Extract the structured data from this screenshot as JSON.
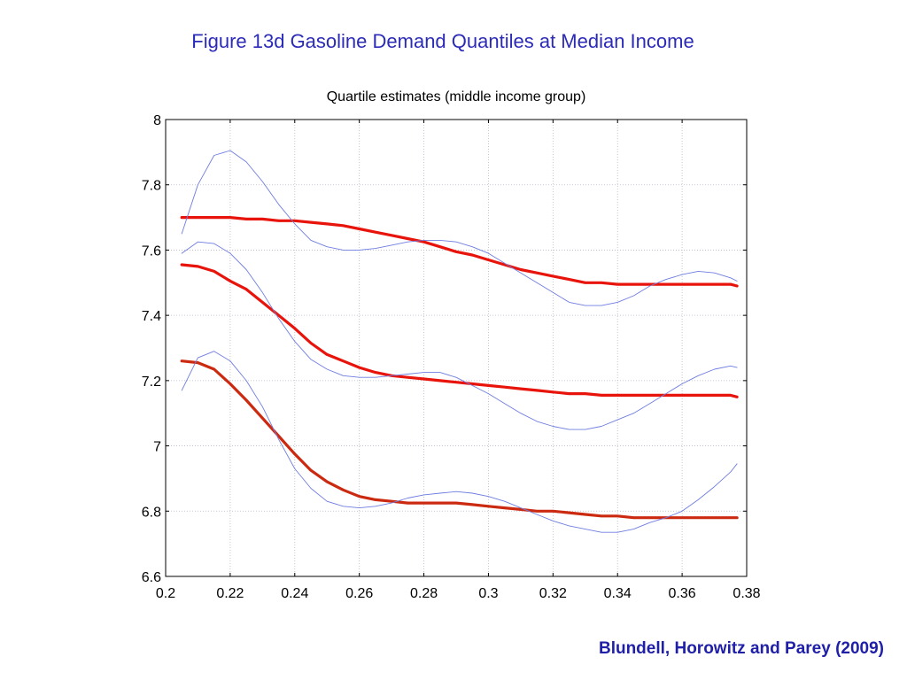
{
  "slide": {
    "title": "Figure 13d  Gasoline Demand Quantiles at Median Income",
    "citation": "Blundell, Horowitz and Parey (2009)"
  },
  "colors": {
    "title": "#2b2bb8",
    "citation": "#1f1fa8",
    "estimate_lines": "#e8140c",
    "lower_estimate_line": "#cc2a10",
    "band_lines": "#6f7de0",
    "grid": "#b8b8c8"
  },
  "chart_data": {
    "type": "line",
    "title": "Quartile estimates (middle income group)",
    "xlabel": "",
    "ylabel": "",
    "xlim": [
      0.2,
      0.38
    ],
    "ylim": [
      6.6,
      8.0
    ],
    "xticks": [
      "0.2",
      "0.22",
      "0.24",
      "0.26",
      "0.28",
      "0.3",
      "0.32",
      "0.34",
      "0.36",
      "0.38"
    ],
    "yticks": [
      "6.6",
      "6.8",
      "7",
      "7.2",
      "7.4",
      "7.6",
      "7.8",
      "8"
    ],
    "grid": true,
    "legend": "none",
    "series": [
      {
        "role": "estimate",
        "color": "#e8140c",
        "x": [
          0.205,
          0.21,
          0.215,
          0.22,
          0.225,
          0.23,
          0.235,
          0.24,
          0.245,
          0.25,
          0.255,
          0.26,
          0.265,
          0.27,
          0.275,
          0.28,
          0.285,
          0.29,
          0.295,
          0.3,
          0.305,
          0.31,
          0.315,
          0.32,
          0.325,
          0.33,
          0.335,
          0.34,
          0.345,
          0.35,
          0.355,
          0.36,
          0.365,
          0.37,
          0.375,
          0.377
        ],
        "y": [
          7.7,
          7.7,
          7.7,
          7.7,
          7.695,
          7.695,
          7.69,
          7.69,
          7.685,
          7.68,
          7.675,
          7.665,
          7.655,
          7.645,
          7.635,
          7.625,
          7.61,
          7.595,
          7.585,
          7.57,
          7.555,
          7.54,
          7.53,
          7.52,
          7.51,
          7.5,
          7.5,
          7.495,
          7.495,
          7.495,
          7.495,
          7.495,
          7.495,
          7.495,
          7.495,
          7.49
        ]
      },
      {
        "role": "estimate",
        "color": "#e8140c",
        "x": [
          0.205,
          0.21,
          0.215,
          0.22,
          0.225,
          0.23,
          0.235,
          0.24,
          0.245,
          0.25,
          0.255,
          0.26,
          0.265,
          0.27,
          0.275,
          0.28,
          0.285,
          0.29,
          0.295,
          0.3,
          0.305,
          0.31,
          0.315,
          0.32,
          0.325,
          0.33,
          0.335,
          0.34,
          0.345,
          0.35,
          0.355,
          0.36,
          0.365,
          0.37,
          0.375,
          0.377
        ],
        "y": [
          7.555,
          7.55,
          7.535,
          7.505,
          7.48,
          7.44,
          7.4,
          7.36,
          7.315,
          7.28,
          7.26,
          7.24,
          7.225,
          7.215,
          7.21,
          7.205,
          7.2,
          7.195,
          7.19,
          7.185,
          7.18,
          7.175,
          7.17,
          7.165,
          7.16,
          7.16,
          7.155,
          7.155,
          7.155,
          7.155,
          7.155,
          7.155,
          7.155,
          7.155,
          7.155,
          7.15
        ]
      },
      {
        "role": "estimate",
        "color": "#cc2a10",
        "x": [
          0.205,
          0.21,
          0.215,
          0.22,
          0.225,
          0.23,
          0.235,
          0.24,
          0.245,
          0.25,
          0.255,
          0.26,
          0.265,
          0.27,
          0.275,
          0.28,
          0.285,
          0.29,
          0.295,
          0.3,
          0.305,
          0.31,
          0.315,
          0.32,
          0.325,
          0.33,
          0.335,
          0.34,
          0.345,
          0.35,
          0.355,
          0.36,
          0.365,
          0.37,
          0.375,
          0.377
        ],
        "y": [
          7.26,
          7.255,
          7.235,
          7.19,
          7.14,
          7.085,
          7.03,
          6.975,
          6.925,
          6.89,
          6.865,
          6.845,
          6.835,
          6.83,
          6.825,
          6.825,
          6.825,
          6.825,
          6.82,
          6.815,
          6.81,
          6.805,
          6.8,
          6.8,
          6.795,
          6.79,
          6.785,
          6.785,
          6.78,
          6.78,
          6.78,
          6.78,
          6.78,
          6.78,
          6.78,
          6.78
        ]
      },
      {
        "role": "band",
        "color": "#6f7de0",
        "x": [
          0.205,
          0.21,
          0.215,
          0.22,
          0.225,
          0.23,
          0.235,
          0.24,
          0.245,
          0.25,
          0.255,
          0.26,
          0.265,
          0.27,
          0.275,
          0.28,
          0.285,
          0.29,
          0.295,
          0.3,
          0.305,
          0.31,
          0.315,
          0.32,
          0.325,
          0.33,
          0.335,
          0.34,
          0.345,
          0.35,
          0.355,
          0.36,
          0.365,
          0.37,
          0.375,
          0.377
        ],
        "y": [
          7.65,
          7.8,
          7.89,
          7.905,
          7.87,
          7.81,
          7.74,
          7.68,
          7.63,
          7.61,
          7.6,
          7.6,
          7.605,
          7.615,
          7.625,
          7.63,
          7.63,
          7.625,
          7.61,
          7.59,
          7.56,
          7.53,
          7.5,
          7.47,
          7.44,
          7.43,
          7.43,
          7.44,
          7.46,
          7.49,
          7.51,
          7.525,
          7.535,
          7.53,
          7.515,
          7.505
        ]
      },
      {
        "role": "band",
        "color": "#6f7de0",
        "x": [
          0.205,
          0.21,
          0.215,
          0.22,
          0.225,
          0.23,
          0.235,
          0.24,
          0.245,
          0.25,
          0.255,
          0.26,
          0.265,
          0.27,
          0.275,
          0.28,
          0.285,
          0.29,
          0.295,
          0.3,
          0.305,
          0.31,
          0.315,
          0.32,
          0.325,
          0.33,
          0.335,
          0.34,
          0.345,
          0.35,
          0.355,
          0.36,
          0.365,
          0.37,
          0.375,
          0.377
        ],
        "y": [
          7.59,
          7.625,
          7.62,
          7.59,
          7.54,
          7.47,
          7.39,
          7.32,
          7.265,
          7.235,
          7.215,
          7.21,
          7.21,
          7.215,
          7.22,
          7.225,
          7.225,
          7.21,
          7.185,
          7.16,
          7.13,
          7.1,
          7.075,
          7.06,
          7.05,
          7.05,
          7.06,
          7.08,
          7.1,
          7.13,
          7.16,
          7.19,
          7.215,
          7.235,
          7.245,
          7.24
        ]
      },
      {
        "role": "band",
        "color": "#6f7de0",
        "x": [
          0.205,
          0.21,
          0.215,
          0.22,
          0.225,
          0.23,
          0.235,
          0.24,
          0.245,
          0.25,
          0.255,
          0.26,
          0.265,
          0.27,
          0.275,
          0.28,
          0.285,
          0.29,
          0.295,
          0.3,
          0.305,
          0.31,
          0.315,
          0.32,
          0.325,
          0.33,
          0.335,
          0.34,
          0.345,
          0.35,
          0.355,
          0.36,
          0.365,
          0.37,
          0.375,
          0.377
        ],
        "y": [
          7.17,
          7.27,
          7.29,
          7.26,
          7.2,
          7.12,
          7.02,
          6.93,
          6.87,
          6.83,
          6.815,
          6.81,
          6.815,
          6.825,
          6.84,
          6.85,
          6.855,
          6.86,
          6.855,
          6.845,
          6.83,
          6.81,
          6.79,
          6.77,
          6.755,
          6.745,
          6.735,
          6.735,
          6.745,
          6.765,
          6.78,
          6.8,
          6.835,
          6.875,
          6.92,
          6.945
        ]
      }
    ]
  }
}
